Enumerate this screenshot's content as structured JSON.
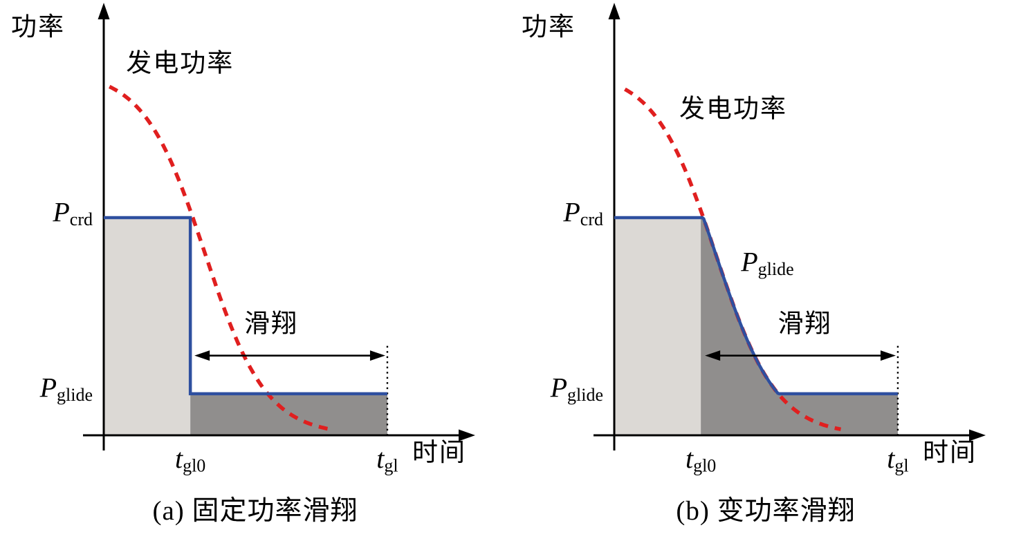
{
  "figure": {
    "background": "#ffffff"
  },
  "chart_data": [
    {
      "id": "a",
      "type": "line",
      "caption": "(a) 固定功率滑翔",
      "mode": "fixed",
      "xlabel": "时间",
      "ylabel": "功率",
      "labels": {
        "gen_power": "发电功率",
        "glide": "滑翔",
        "p_crd": {
          "base": "P",
          "sub": "crd"
        },
        "p_glide": {
          "base": "P",
          "sub": "glide"
        },
        "t_gl0": {
          "base": "t",
          "sub": "gl0"
        },
        "t_gl": {
          "base": "t",
          "sub": "gl"
        }
      },
      "series": [
        {
          "role": "generated-power",
          "label": "发电功率",
          "line_style": "dashed",
          "color": "#e01f1f",
          "shape": "sigmoid-decreasing"
        },
        {
          "role": "glide-power",
          "label": null,
          "line_style": "solid",
          "color": "#2e4f9f",
          "shape": "constant at P_crd until t_gl0, step down to P_glide until t_gl"
        }
      ],
      "geom": {
        "p_crd": 0.508,
        "p_glide": 0.097,
        "t_gl0": 0.243,
        "t_gl": 0.796,
        "sigmoid": {
          "amp": 0.85,
          "mid": 0.284,
          "k": 0.086,
          "x_start": 0.016,
          "x_end": 0.641
        },
        "arrow_y": 0.186,
        "labels_pos": {
          "gen_power": {
            "x": 0.214,
            "y": 0.866
          },
          "glide": {
            "x": 0.47,
            "y": 0.258
          }
        }
      },
      "colors": {
        "gen": "#e01f1f",
        "glide": "#2e4f9f",
        "fill_left": "#dcd9d5",
        "fill_right": "#908e8d",
        "axis": "#000000"
      }
    },
    {
      "id": "b",
      "type": "line",
      "caption": "(b) 变功率滑翔",
      "mode": "variable",
      "xlabel": "时间",
      "ylabel": "功率",
      "labels": {
        "gen_power": "发电功率",
        "glide": "滑翔",
        "p_crd": {
          "base": "P",
          "sub": "crd"
        },
        "p_glide": {
          "base": "P",
          "sub": "glide"
        },
        "t_gl0": {
          "base": "t",
          "sub": "gl0"
        },
        "t_gl": {
          "base": "t",
          "sub": "gl"
        }
      },
      "series": [
        {
          "role": "generated-power",
          "label": "发电功率",
          "line_style": "dashed",
          "color": "#e01f1f",
          "shape": "sigmoid-decreasing"
        },
        {
          "role": "glide-power",
          "label": "P_glide",
          "line_style": "solid",
          "color": "#2e4f9f",
          "shape": "constant at P_crd until t_gl0, follows generated power down, constant at P_glide until t_gl"
        }
      ],
      "geom": {
        "p_crd": 0.508,
        "p_glide": 0.097,
        "t_gl0": 0.243,
        "t_gl": 0.796,
        "sigmoid": {
          "amp": 0.85,
          "mid": 0.284,
          "k": 0.086,
          "x_start": 0.03,
          "x_end": 0.641
        },
        "arrow_y": 0.186,
        "labels_pos": {
          "gen_power": {
            "x": 0.334,
            "y": 0.76
          },
          "glide": {
            "x": 0.535,
            "y": 0.258
          },
          "p_glide_curve": {
            "x": 0.43,
            "y": 0.402
          }
        }
      },
      "colors": {
        "gen": "#e01f1f",
        "glide": "#2e4f9f",
        "fill_left": "#dcd9d5",
        "fill_right": "#908e8d",
        "axis": "#000000"
      }
    }
  ]
}
